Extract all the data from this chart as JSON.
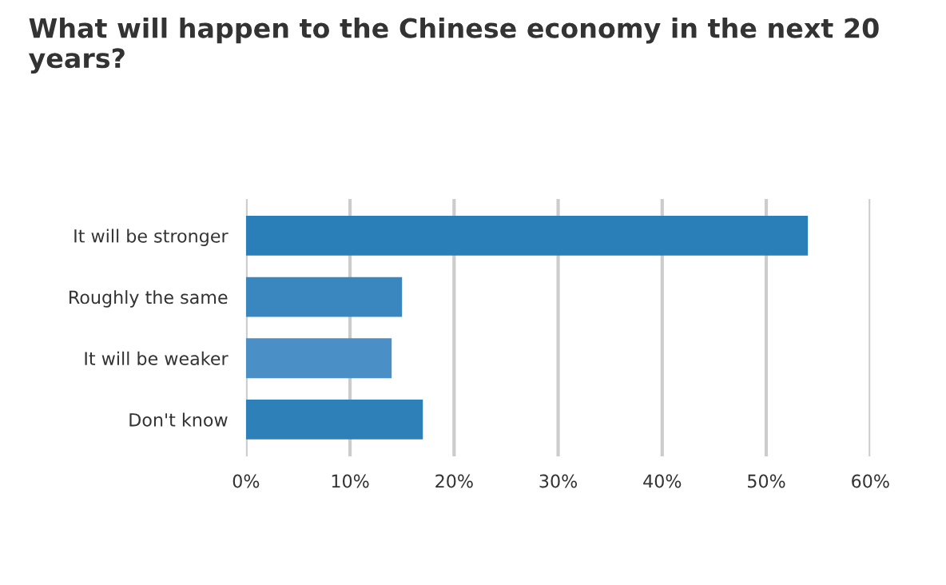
{
  "chart_data": {
    "type": "bar",
    "orientation": "horizontal",
    "title": "What will happen to the Chinese economy in the next 20 years?",
    "categories": [
      "It will be stronger",
      "Roughly the same",
      "It will be weaker",
      "Don't know"
    ],
    "values": [
      54,
      15,
      14,
      17
    ],
    "colors": [
      "#2a7fb8",
      "#3a87c0",
      "#4a90c6",
      "#2e80b9"
    ],
    "xlim": [
      0,
      60
    ],
    "xticks": [
      {
        "value": 0,
        "label": "0%"
      },
      {
        "value": 10,
        "label": "10%"
      },
      {
        "value": 20,
        "label": "20%"
      },
      {
        "value": 30,
        "label": "30%"
      },
      {
        "value": 40,
        "label": "40%"
      },
      {
        "value": 50,
        "label": "50%"
      },
      {
        "value": 60,
        "label": "60%"
      }
    ],
    "grid": "x",
    "legend": false
  }
}
